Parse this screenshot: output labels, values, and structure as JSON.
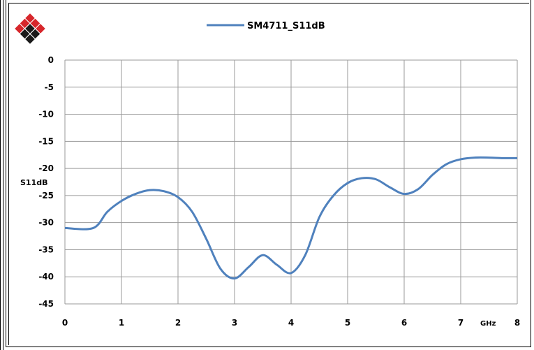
{
  "logo": {
    "icon": "diamond-grid-logo-icon",
    "colors": [
      "#d7262b",
      "#1a1a1a"
    ]
  },
  "chart_data": {
    "type": "line",
    "title": "",
    "xlabel": "GHz",
    "ylabel": "S11dB",
    "xlim": [
      0,
      8
    ],
    "ylim": [
      -45,
      0
    ],
    "x_ticks": [
      "0",
      "1",
      "2",
      "3",
      "4",
      "5",
      "6",
      "7",
      "8"
    ],
    "y_ticks": [
      "0",
      "-5",
      "-10",
      "-15",
      "-20",
      "-25",
      "-30",
      "-35",
      "-40",
      "-45"
    ],
    "grid": true,
    "legend_position": "top-center",
    "series": [
      {
        "name": "SM4711_S11dB",
        "color": "#4f81bd",
        "x": [
          0,
          0.5,
          0.75,
          1.0,
          1.25,
          1.5,
          1.75,
          2.0,
          2.25,
          2.5,
          2.75,
          3.0,
          3.25,
          3.5,
          3.75,
          4.0,
          4.25,
          4.5,
          4.75,
          5.0,
          5.25,
          5.5,
          5.75,
          6.0,
          6.25,
          6.5,
          6.75,
          7.0,
          7.25,
          7.5,
          7.75,
          8.0
        ],
        "y": [
          -31,
          -31,
          -28,
          -26,
          -24.7,
          -24,
          -24.2,
          -25.3,
          -28,
          -33,
          -38.5,
          -40.3,
          -38.2,
          -36,
          -37.8,
          -39.3,
          -36,
          -29,
          -25,
          -22.7,
          -21.8,
          -22,
          -23.5,
          -24.7,
          -23.8,
          -21.2,
          -19.2,
          -18.3,
          -18.0,
          -18.0,
          -18.1,
          -18.1
        ]
      }
    ]
  }
}
